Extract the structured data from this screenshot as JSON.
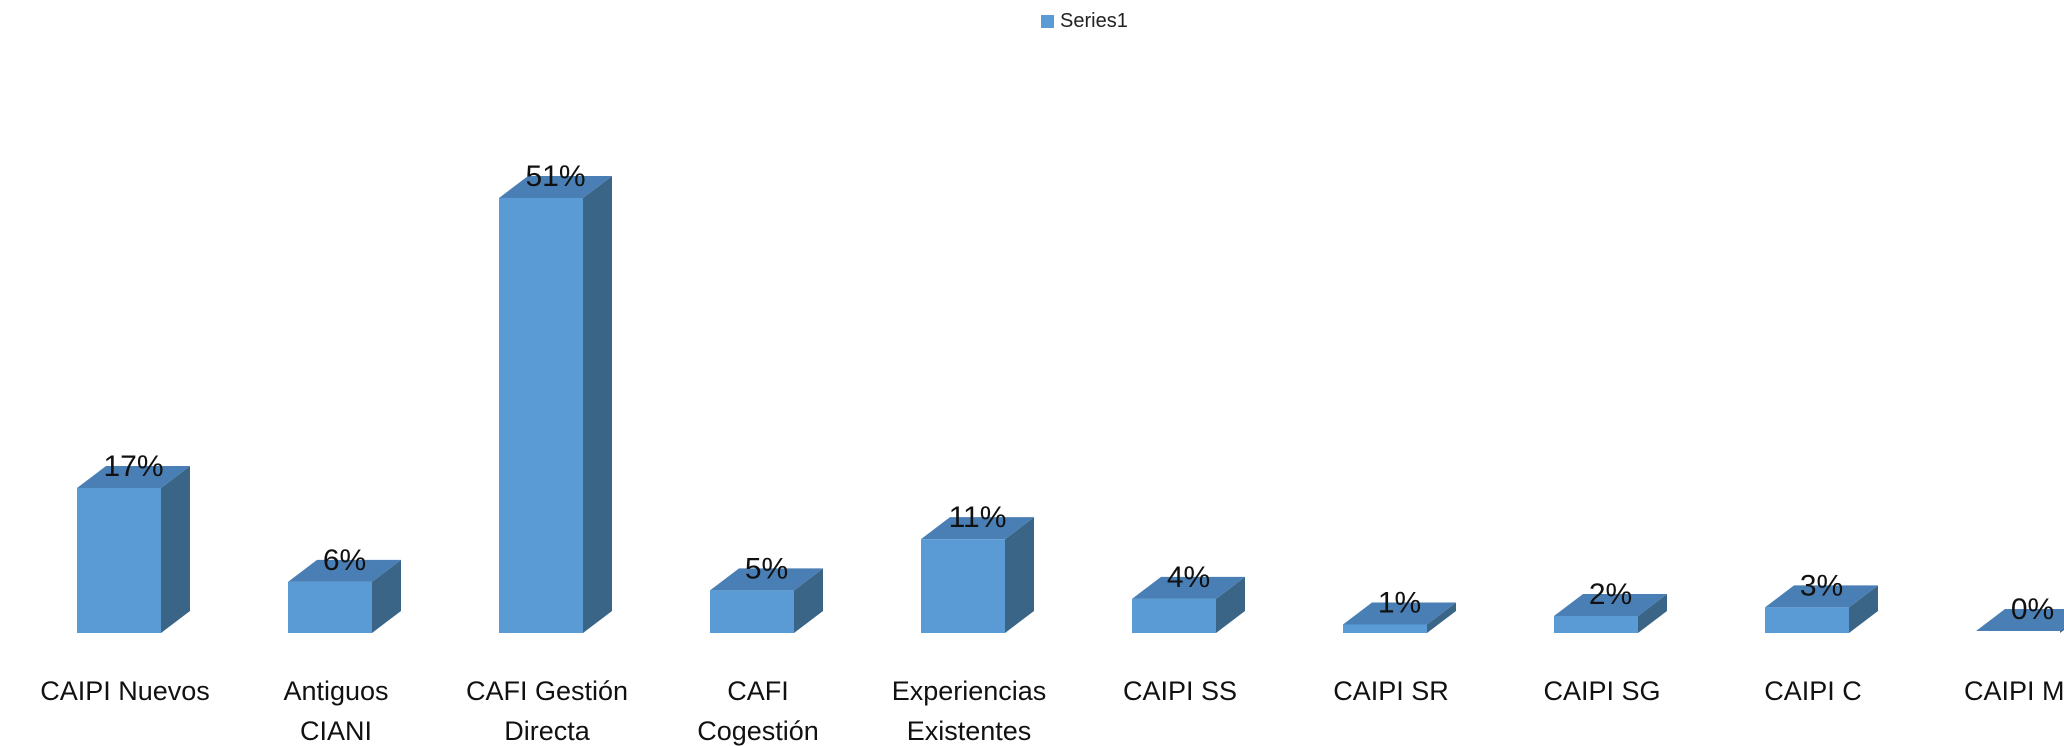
{
  "chart_data": {
    "type": "bar",
    "style": "3d-column",
    "categories": [
      [
        "CAIPI Nuevos"
      ],
      [
        "Antiguos",
        "CIANI"
      ],
      [
        "CAFI Gestión",
        "Directa"
      ],
      [
        "CAFI",
        "Cogestión"
      ],
      [
        "Experiencias",
        "Existentes"
      ],
      [
        "CAIPI SS"
      ],
      [
        "CAIPI SR"
      ],
      [
        "CAIPI SG"
      ],
      [
        "CAIPI C"
      ],
      [
        "CAIPI MC"
      ]
    ],
    "series": [
      {
        "name": "Series1",
        "values": [
          17,
          6,
          51,
          5,
          11,
          4,
          1,
          2,
          3,
          0
        ],
        "labels": [
          "17%",
          "6%",
          "51%",
          "5%",
          "11%",
          "4%",
          "1%",
          "2%",
          "3%",
          "0%"
        ],
        "color": "#5b9bd5"
      }
    ],
    "ylim": [
      0,
      51
    ],
    "legend": "top-center",
    "grid": false
  }
}
